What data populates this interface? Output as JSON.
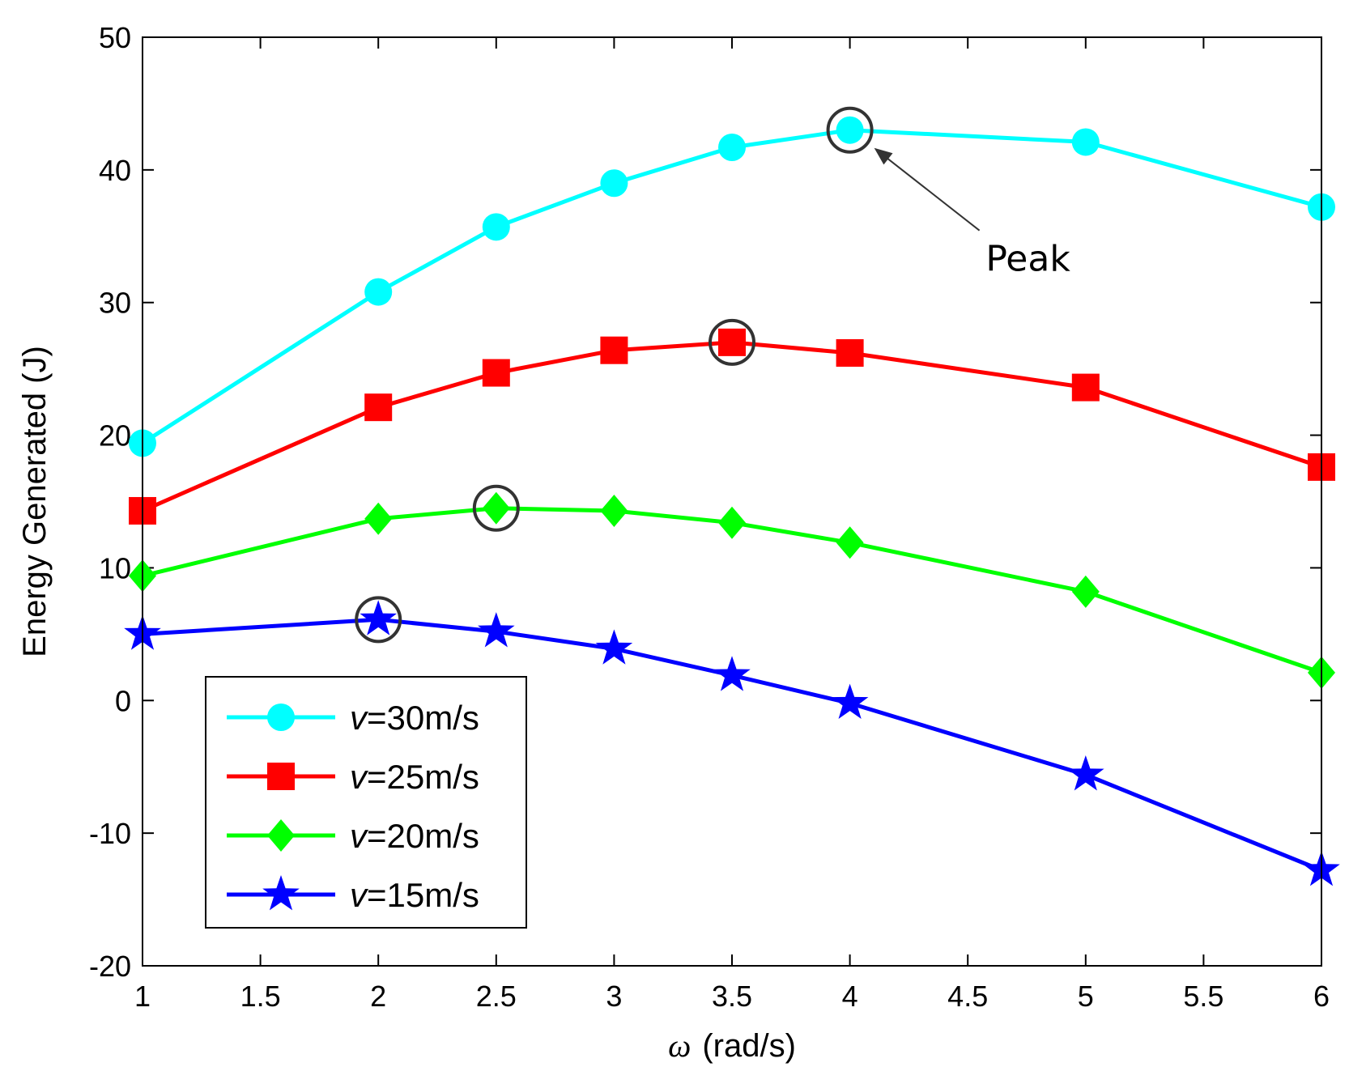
{
  "chart_data": {
    "type": "line",
    "xlabel_symbol": "ω",
    "xlabel_unit": "(rad/s)",
    "ylabel": "Energy Generated (J)",
    "xlim": [
      1,
      6
    ],
    "ylim": [
      -20,
      50
    ],
    "xticks": [
      1,
      1.5,
      2,
      2.5,
      3,
      3.5,
      4,
      4.5,
      5,
      5.5,
      6
    ],
    "yticks": [
      -20,
      -10,
      0,
      10,
      20,
      30,
      40,
      50
    ],
    "grid": false,
    "legend_position": "bottom-left",
    "series": [
      {
        "name": "v=30m/s",
        "legend_symbol": "v",
        "legend_value": "=30m/s",
        "color": "#00ffff",
        "marker": "circle",
        "x": [
          1,
          2,
          2.5,
          3,
          3.5,
          4,
          5,
          6
        ],
        "y": [
          19.4,
          30.8,
          35.7,
          39.0,
          41.7,
          43.0,
          42.1,
          37.2
        ],
        "peak_index": 5
      },
      {
        "name": "v=25m/s",
        "legend_symbol": "v",
        "legend_value": "=25m/s",
        "color": "#ff0000",
        "marker": "square",
        "x": [
          1,
          2,
          2.5,
          3,
          3.5,
          4,
          5,
          6
        ],
        "y": [
          14.3,
          22.1,
          24.7,
          26.4,
          27.0,
          26.2,
          23.6,
          17.6
        ],
        "peak_index": 4
      },
      {
        "name": "v=20m/s",
        "legend_symbol": "v",
        "legend_value": "=20m/s",
        "color": "#00ff00",
        "marker": "diamond",
        "x": [
          1,
          2,
          2.5,
          3,
          3.5,
          4,
          5,
          6
        ],
        "y": [
          9.4,
          13.7,
          14.5,
          14.3,
          13.4,
          11.9,
          8.2,
          2.1
        ],
        "peak_index": 2
      },
      {
        "name": "v=15m/s",
        "legend_symbol": "v",
        "legend_value": "=15m/s",
        "color": "#0000ff",
        "marker": "star",
        "x": [
          1,
          2,
          2.5,
          3,
          3.5,
          4,
          5,
          6
        ],
        "y": [
          5.0,
          6.1,
          5.2,
          3.9,
          1.9,
          -0.2,
          -5.6,
          -12.8
        ],
        "peak_index": 1
      }
    ],
    "annotations": [
      {
        "text": "Peak",
        "arrow_to": {
          "x": 4,
          "y": 43.0
        }
      }
    ]
  }
}
